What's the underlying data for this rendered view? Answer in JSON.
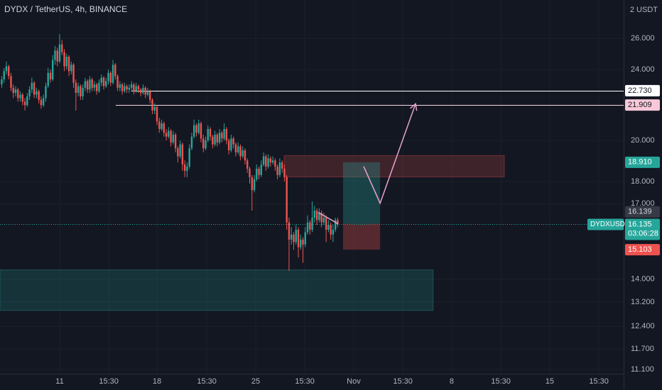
{
  "chart_data": {
    "type": "candlestick",
    "title": "DYDX / TetherUS, 4h, BINANCE",
    "currency_label": "2 USDT",
    "log_scale": true,
    "grid": true,
    "up_color": "#26a69a",
    "down_color": "#ef5350",
    "ylim": [
      10.98,
      28.7
    ],
    "yticks": [
      {
        "value": 26,
        "label": "26.000"
      },
      {
        "value": 24,
        "label": "24.000"
      },
      {
        "value": 20,
        "label": "20.000"
      },
      {
        "value": 18,
        "label": "18.000"
      },
      {
        "value": 17,
        "label": "17.000"
      },
      {
        "value": 14,
        "label": "14.000"
      },
      {
        "value": 13.2,
        "label": "13.200"
      },
      {
        "value": 12.4,
        "label": "12.400"
      },
      {
        "value": 11.7,
        "label": "11.700"
      },
      {
        "value": 11.1,
        "label": "11.100"
      }
    ],
    "xlim": [
      -0.75,
      268.4
    ],
    "xticks": [
      {
        "value": 25,
        "label": "11"
      },
      {
        "value": 46.2,
        "label": "15:30"
      },
      {
        "value": 67,
        "label": "18"
      },
      {
        "value": 88.5,
        "label": "15:30"
      },
      {
        "value": 109.6,
        "label": "25"
      },
      {
        "value": 130.8,
        "label": "15:30"
      },
      {
        "value": 151.9,
        "label": "Nov"
      },
      {
        "value": 173.1,
        "label": "15:30"
      },
      {
        "value": 194.2,
        "label": "8"
      },
      {
        "value": 215.4,
        "label": "15:30"
      },
      {
        "value": 236.5,
        "label": "15"
      },
      {
        "value": 257.7,
        "label": "15:30"
      }
    ],
    "candles": [
      [
        23.1,
        23.6,
        22.9,
        23.4
      ],
      [
        23.4,
        24.1,
        23.2,
        23.9
      ],
      [
        23.9,
        24.5,
        23.7,
        24.2
      ],
      [
        24.2,
        24.3,
        23.4,
        23.6
      ],
      [
        23.6,
        23.8,
        22.7,
        22.9
      ],
      [
        22.9,
        23.1,
        22.3,
        22.6
      ],
      [
        22.6,
        23.0,
        22.4,
        22.8
      ],
      [
        22.8,
        22.9,
        22.1,
        22.3
      ],
      [
        22.3,
        22.7,
        22.1,
        22.5
      ],
      [
        22.5,
        22.6,
        21.9,
        22.1
      ],
      [
        22.1,
        22.3,
        21.6,
        21.9
      ],
      [
        21.9,
        22.6,
        21.8,
        22.4
      ],
      [
        22.4,
        23.0,
        22.2,
        22.8
      ],
      [
        22.8,
        23.5,
        22.6,
        23.2
      ],
      [
        23.2,
        23.3,
        22.3,
        22.5
      ],
      [
        22.5,
        22.9,
        22.3,
        22.7
      ],
      [
        22.7,
        22.8,
        22.0,
        22.2
      ],
      [
        22.2,
        22.4,
        21.7,
        21.9
      ],
      [
        21.9,
        22.5,
        21.8,
        22.3
      ],
      [
        22.3,
        23.2,
        22.1,
        23.0
      ],
      [
        23.0,
        24.1,
        22.9,
        23.8
      ],
      [
        23.8,
        24.0,
        23.2,
        23.4
      ],
      [
        23.4,
        24.9,
        23.3,
        24.6
      ],
      [
        24.6,
        25.5,
        24.3,
        25.2
      ],
      [
        25.2,
        25.4,
        24.2,
        24.5
      ],
      [
        24.5,
        26.3,
        24.4,
        25.6
      ],
      [
        25.6,
        25.9,
        24.9,
        25.1
      ],
      [
        25.1,
        25.3,
        23.9,
        24.2
      ],
      [
        24.2,
        25.0,
        24.0,
        24.8
      ],
      [
        24.8,
        24.9,
        23.6,
        23.9
      ],
      [
        23.9,
        24.5,
        23.7,
        24.3
      ],
      [
        24.3,
        24.4,
        22.9,
        23.2
      ],
      [
        23.2,
        23.4,
        21.6,
        22.6
      ],
      [
        22.6,
        23.2,
        22.4,
        23.0
      ],
      [
        23.0,
        23.1,
        22.2,
        22.4
      ],
      [
        22.4,
        23.1,
        22.2,
        22.9
      ],
      [
        22.9,
        23.5,
        22.7,
        23.3
      ],
      [
        23.3,
        23.4,
        22.6,
        22.8
      ],
      [
        22.8,
        23.6,
        22.6,
        23.4
      ],
      [
        23.4,
        23.5,
        22.7,
        22.9
      ],
      [
        22.9,
        23.3,
        22.7,
        23.1
      ],
      [
        23.1,
        23.2,
        22.5,
        22.7
      ],
      [
        22.7,
        23.4,
        22.6,
        23.2
      ],
      [
        23.2,
        23.7,
        23.0,
        23.5
      ],
      [
        23.5,
        23.6,
        22.8,
        23.0
      ],
      [
        23.0,
        23.5,
        22.9,
        23.3
      ],
      [
        23.3,
        24.0,
        23.1,
        23.8
      ],
      [
        23.8,
        23.9,
        23.0,
        23.2
      ],
      [
        23.2,
        24.6,
        23.1,
        24.3
      ],
      [
        24.3,
        24.4,
        23.4,
        23.6
      ],
      [
        23.6,
        23.7,
        22.7,
        22.9
      ],
      [
        22.9,
        23.3,
        22.7,
        23.1
      ],
      [
        23.1,
        23.2,
        22.5,
        22.7
      ],
      [
        22.7,
        23.2,
        22.6,
        23.0
      ],
      [
        23.0,
        23.1,
        22.6,
        22.8
      ],
      [
        22.8,
        23.1,
        22.6,
        22.9
      ],
      [
        22.9,
        23.3,
        22.7,
        23.1
      ],
      [
        23.1,
        23.2,
        22.5,
        22.7
      ],
      [
        22.7,
        23.2,
        22.6,
        23.0
      ],
      [
        23.0,
        23.1,
        22.6,
        22.8
      ],
      [
        22.8,
        22.9,
        22.4,
        22.6
      ],
      [
        22.6,
        23.1,
        22.5,
        22.9
      ],
      [
        22.9,
        23.0,
        22.3,
        22.5
      ],
      [
        22.5,
        22.9,
        22.4,
        22.7
      ],
      [
        22.7,
        22.8,
        22.0,
        22.2
      ],
      [
        22.2,
        22.3,
        21.4,
        21.6
      ],
      [
        21.6,
        22.0,
        21.4,
        21.8
      ],
      [
        21.8,
        21.9,
        20.8,
        21.0
      ],
      [
        21.0,
        21.2,
        20.4,
        20.6
      ],
      [
        20.6,
        21.1,
        20.5,
        20.9
      ],
      [
        20.9,
        21.0,
        20.2,
        20.4
      ],
      [
        20.4,
        20.6,
        20.0,
        20.2
      ],
      [
        20.2,
        20.7,
        20.1,
        20.5
      ],
      [
        20.5,
        20.6,
        19.7,
        19.9
      ],
      [
        19.9,
        20.5,
        19.8,
        20.3
      ],
      [
        20.3,
        20.4,
        19.4,
        19.6
      ],
      [
        19.6,
        19.7,
        18.9,
        19.2
      ],
      [
        19.2,
        20.0,
        19.1,
        19.8
      ],
      [
        19.8,
        19.9,
        18.5,
        18.8
      ],
      [
        18.8,
        19.0,
        18.2,
        18.5
      ],
      [
        18.5,
        18.9,
        18.2,
        18.7
      ],
      [
        18.7,
        19.8,
        18.6,
        19.6
      ],
      [
        19.6,
        20.4,
        19.5,
        20.2
      ],
      [
        20.2,
        21.1,
        20.1,
        20.8
      ],
      [
        20.8,
        20.9,
        20.2,
        20.4
      ],
      [
        20.4,
        21.1,
        20.3,
        20.9
      ],
      [
        20.9,
        21.0,
        19.9,
        20.1
      ],
      [
        20.1,
        20.3,
        19.4,
        19.6
      ],
      [
        19.6,
        20.2,
        19.5,
        20.0
      ],
      [
        20.0,
        20.8,
        19.9,
        20.6
      ],
      [
        20.6,
        20.7,
        20.0,
        20.2
      ],
      [
        20.2,
        20.3,
        19.6,
        19.8
      ],
      [
        19.8,
        20.5,
        19.7,
        20.3
      ],
      [
        20.3,
        20.4,
        19.7,
        19.9
      ],
      [
        19.9,
        20.6,
        19.8,
        20.4
      ],
      [
        20.4,
        20.5,
        19.9,
        20.1
      ],
      [
        20.1,
        20.9,
        20.0,
        20.6
      ],
      [
        20.6,
        20.7,
        19.8,
        20.0
      ],
      [
        20.0,
        20.1,
        19.3,
        19.5
      ],
      [
        19.5,
        20.3,
        19.4,
        20.1
      ],
      [
        20.1,
        20.2,
        19.6,
        19.8
      ],
      [
        19.8,
        19.9,
        19.2,
        19.4
      ],
      [
        19.4,
        19.9,
        19.3,
        19.7
      ],
      [
        19.7,
        19.8,
        19.0,
        19.2
      ],
      [
        19.2,
        19.7,
        19.1,
        19.5
      ],
      [
        19.5,
        19.6,
        18.8,
        19.0
      ],
      [
        19.0,
        19.1,
        18.4,
        18.6
      ],
      [
        18.6,
        18.7,
        17.9,
        18.2
      ],
      [
        18.2,
        18.3,
        16.7,
        17.6
      ],
      [
        17.6,
        18.3,
        17.5,
        18.1
      ],
      [
        18.1,
        18.8,
        18.0,
        18.6
      ],
      [
        18.6,
        18.7,
        18.1,
        18.3
      ],
      [
        18.3,
        19.0,
        18.2,
        18.8
      ],
      [
        18.8,
        19.4,
        18.7,
        19.2
      ],
      [
        19.2,
        19.3,
        18.5,
        18.7
      ],
      [
        18.7,
        19.3,
        18.6,
        19.1
      ],
      [
        19.1,
        19.2,
        18.7,
        18.9
      ],
      [
        18.9,
        19.2,
        18.8,
        19.0
      ],
      [
        19.0,
        19.1,
        18.5,
        18.7
      ],
      [
        18.7,
        18.8,
        18.1,
        18.3
      ],
      [
        18.3,
        19.1,
        18.2,
        18.9
      ],
      [
        18.9,
        19.0,
        18.4,
        18.6
      ],
      [
        18.6,
        18.8,
        18.0,
        18.2
      ],
      [
        18.2,
        18.3,
        15.9,
        16.2
      ],
      [
        16.2,
        16.4,
        14.3,
        15.5
      ],
      [
        15.5,
        16.0,
        15.3,
        15.7
      ],
      [
        15.7,
        15.8,
        15.1,
        15.4
      ],
      [
        15.4,
        16.1,
        15.3,
        15.9
      ],
      [
        15.9,
        16.0,
        14.8,
        15.2
      ],
      [
        15.2,
        15.7,
        15.1,
        15.5
      ],
      [
        15.5,
        15.6,
        14.6,
        15.3
      ],
      [
        15.3,
        16.0,
        15.2,
        15.8
      ],
      [
        15.8,
        16.5,
        15.7,
        16.2
      ],
      [
        16.2,
        16.3,
        15.7,
        15.9
      ],
      [
        15.9,
        17.1,
        15.8,
        16.4
      ],
      [
        16.4,
        16.9,
        16.2,
        16.7
      ],
      [
        16.7,
        16.8,
        16.1,
        16.3
      ],
      [
        16.3,
        16.8,
        16.2,
        16.6
      ],
      [
        16.6,
        16.7,
        16.0,
        16.2
      ],
      [
        16.2,
        16.6,
        16.1,
        16.4
      ],
      [
        16.4,
        16.5,
        15.4,
        15.9
      ],
      [
        15.9,
        16.3,
        15.8,
        16.1
      ],
      [
        16.1,
        16.2,
        15.5,
        15.7
      ],
      [
        15.7,
        16.1,
        15.4,
        15.9
      ],
      [
        15.9,
        16.4,
        15.8,
        16.3
      ],
      [
        16.3,
        16.4,
        16.0,
        16.135
      ]
    ],
    "hlines": [
      {
        "value": 22.73,
        "label": "22.730",
        "x_start": 56,
        "color": "#ffffff",
        "label_color": "#ffffff"
      },
      {
        "value": 21.909,
        "label": "21.909",
        "x_start": 49.2,
        "color": "#f8d7e3",
        "label_color": "#f8c8d8"
      }
    ],
    "zones": [
      {
        "x": [
          121.9,
          216.9
        ],
        "y": [
          18.21,
          19.24
        ],
        "color": "#ef5350"
      },
      {
        "x": [
          -0.75,
          186.2
        ],
        "y": [
          12.92,
          14.34
        ],
        "color": "#26a69a"
      }
    ],
    "position": {
      "x": [
        147.3,
        163.3
      ],
      "target": {
        "value": 18.91,
        "label": "18.910"
      },
      "entry": {
        "value": 16.139,
        "label": "16.139"
      },
      "stop": {
        "value": 15.103,
        "label": "15.103"
      }
    },
    "arrow": {
      "x": [
        156.2,
        163.3,
        178.6
      ],
      "y": [
        18.71,
        17.02,
        21.98
      ],
      "color": "#e8a3d0"
    },
    "trendline": {
      "x": [
        136.6,
        145.2
      ],
      "y": [
        16.62,
        16.14
      ],
      "color": "#e8a3d0"
    },
    "current_price": {
      "value": 16.135,
      "label": "16.135",
      "symbol": "DYDXUSDT",
      "countdown": "03:06:28"
    }
  }
}
